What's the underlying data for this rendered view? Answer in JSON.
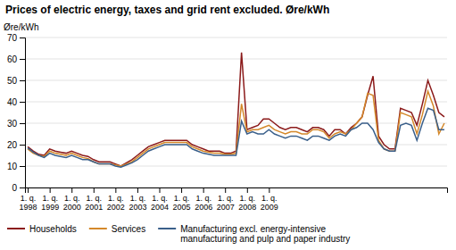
{
  "chart_data": {
    "type": "line",
    "title": "Prices of electric energy, taxes and grid rent excluded. Øre/kWh",
    "ylabel": "Øre/kWh",
    "categories": [
      "1. q.\n1998",
      null,
      null,
      null,
      "1. q.\n1999",
      null,
      null,
      null,
      "1. q.\n2000",
      null,
      null,
      null,
      "1. q.\n2001",
      null,
      null,
      null,
      "1. q.\n2002",
      null,
      null,
      null,
      "1. q.\n2003",
      null,
      null,
      null,
      "1. q.\n2004",
      null,
      null,
      null,
      "1. q.\n2005",
      null,
      null,
      null,
      "1. q.\n2006",
      null,
      null,
      null,
      "1. q.\n2007",
      null,
      null,
      null,
      "1. q.\n2008",
      null,
      null,
      null,
      "1. q.\n2009",
      null,
      null,
      null,
      null,
      null,
      null,
      null,
      null,
      null,
      null,
      null,
      null,
      null,
      null,
      null,
      null,
      null,
      null,
      null,
      null,
      null,
      null,
      null,
      null,
      null,
      null,
      null,
      null,
      null,
      null,
      null,
      null
    ],
    "series": [
      {
        "name": "Households",
        "color": "#8b1a1a",
        "values": [
          19,
          17,
          15.5,
          15,
          18,
          17,
          16.5,
          16,
          17,
          16,
          15,
          14.5,
          13,
          12,
          12,
          12,
          11,
          10,
          11.5,
          13,
          15,
          17,
          19,
          20,
          21,
          22,
          22,
          22,
          22,
          22,
          20,
          19,
          18,
          17,
          17,
          17,
          16,
          16,
          17,
          63,
          27,
          28,
          29,
          32,
          32,
          30,
          28,
          27,
          28,
          28,
          27,
          26,
          28,
          28,
          27,
          24,
          27,
          27,
          25,
          28,
          30,
          33,
          43,
          52,
          24,
          20,
          18,
          18,
          37,
          36,
          35,
          29,
          39,
          50,
          43,
          35,
          33
        ]
      },
      {
        "name": "Services",
        "color": "#d4882a",
        "values": [
          18,
          16,
          15,
          14.5,
          17,
          16,
          15.5,
          15,
          16,
          15,
          14,
          13.5,
          12,
          11,
          11,
          11,
          10.5,
          10,
          11,
          12,
          14,
          16,
          18,
          19,
          20,
          21,
          21,
          21,
          21,
          21,
          19,
          18,
          17,
          16.5,
          16,
          16,
          15.5,
          15.5,
          16,
          39,
          26,
          27,
          27,
          28,
          29,
          27,
          26,
          25,
          26,
          26,
          25,
          25,
          27,
          27,
          26,
          23,
          25,
          26,
          25,
          27,
          30,
          33,
          44,
          43,
          22,
          18,
          17,
          17,
          35,
          34,
          33,
          25,
          34,
          45,
          38,
          25,
          30
        ]
      },
      {
        "name": "Manufacturing excl. energy-intensive\nmanufacturing and pulp and paper industry",
        "color": "#3a5f8a",
        "values": [
          18.5,
          16.5,
          15,
          14,
          16,
          15,
          14.5,
          14,
          15,
          14,
          13,
          13,
          12,
          11,
          11,
          11,
          10,
          9.5,
          10.5,
          11.5,
          13,
          15,
          17,
          18,
          19,
          20,
          20,
          20,
          20,
          20,
          18,
          17,
          16,
          15.5,
          15,
          15,
          15,
          15,
          15,
          31,
          25,
          26,
          25,
          25,
          27,
          25,
          24,
          23,
          24,
          24,
          23,
          22,
          24,
          24,
          23,
          22,
          24,
          25,
          24,
          27,
          28,
          30,
          30,
          27,
          21,
          18,
          17,
          17,
          29,
          30,
          29,
          22,
          30,
          37,
          36,
          27,
          27
        ]
      }
    ],
    "ylim": [
      0,
      70
    ],
    "yticks": [
      0,
      10,
      20,
      30,
      40,
      50,
      60,
      70
    ],
    "grid": true,
    "legend": "bottom"
  }
}
